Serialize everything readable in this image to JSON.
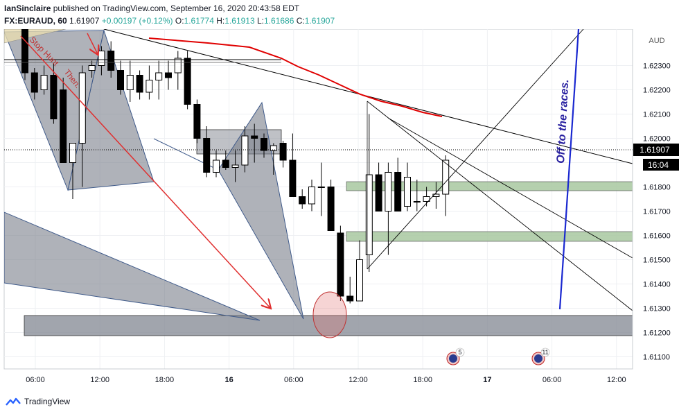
{
  "header": {
    "publisher": "IanSinclaire",
    "published_text": "published on TradingView.com, September 16, 2020 20:43:58 EDT",
    "symbol": "FX:EURAUD, 60",
    "last": "1.61907",
    "change": "+0.00197 (+0.12%)",
    "o_label": "O:",
    "o": "1.61774",
    "h_label": "H:",
    "h": "1.61913",
    "l_label": "L:",
    "l": "1.61686",
    "c_label": "C:",
    "c": "1.61907"
  },
  "footer": {
    "brand": "TradingView"
  },
  "colors": {
    "up_fill": "#ffffff",
    "down_fill": "#000000",
    "candle_border": "#000000",
    "ma": "#e00000",
    "arrow": "#e03030",
    "pattern_fill": "#7a7f8a",
    "zone_green": "#a8c8a0",
    "zone_gray": "#8a8e98",
    "blue_line": "#1a28d0",
    "ellipse": "#d06060",
    "price_tag": "#000000"
  },
  "chart_data": {
    "type": "candlestick",
    "currency": "AUD",
    "ylim": [
      1.6105,
      1.6245
    ],
    "y_ticks": [
      "1.62300",
      "1.62200",
      "1.62100",
      "1.62000",
      "1.61900",
      "1.61800",
      "1.61700",
      "1.61600",
      "1.61500",
      "1.61400",
      "1.61300",
      "1.61200",
      "1.61100"
    ],
    "x_ticks": [
      "06:00",
      "12:00",
      "18:00",
      "16",
      "06:00",
      "12:00",
      "18:00",
      "17",
      "06:00",
      "12:00"
    ],
    "last_price_label": "1.61907",
    "countdown_label": "16:04",
    "candles": [
      [
        1.6245,
        1.625,
        1.6224,
        1.6227
      ],
      [
        1.6227,
        1.6229,
        1.6216,
        1.6219
      ],
      [
        1.622,
        1.623,
        1.6218,
        1.6226
      ],
      [
        1.6226,
        1.6231,
        1.6206,
        1.6208
      ],
      [
        1.622,
        1.6225,
        1.619,
        1.619
      ],
      [
        1.619,
        1.6198,
        1.6175,
        1.6198
      ],
      [
        1.6198,
        1.623,
        1.618,
        1.6227
      ],
      [
        1.6228,
        1.6232,
        1.6225,
        1.623
      ],
      [
        1.623,
        1.6238,
        1.6226,
        1.6236
      ],
      [
        1.6236,
        1.624,
        1.6225,
        1.6228
      ],
      [
        1.6228,
        1.6232,
        1.6218,
        1.622
      ],
      [
        1.622,
        1.6232,
        1.6215,
        1.6226
      ],
      [
        1.6226,
        1.6228,
        1.6216,
        1.6219
      ],
      [
        1.6219,
        1.623,
        1.6216,
        1.6224
      ],
      [
        1.6224,
        1.6232,
        1.6216,
        1.6227
      ],
      [
        1.6227,
        1.6232,
        1.622,
        1.6225
      ],
      [
        1.6227,
        1.6236,
        1.622,
        1.6233
      ],
      [
        1.6233,
        1.6236,
        1.6212,
        1.6214
      ],
      [
        1.6214,
        1.6216,
        1.6198,
        1.62
      ],
      [
        1.62,
        1.6205,
        1.6184,
        1.6186
      ],
      [
        1.6186,
        1.6195,
        1.6184,
        1.6191
      ],
      [
        1.6191,
        1.6195,
        1.6187,
        1.6188
      ],
      [
        1.6188,
        1.6195,
        1.6182,
        1.6189
      ],
      [
        1.6189,
        1.6205,
        1.6186,
        1.6201
      ],
      [
        1.6201,
        1.6206,
        1.619,
        1.62
      ],
      [
        1.62,
        1.6202,
        1.6192,
        1.6195
      ],
      [
        1.6195,
        1.6198,
        1.6185,
        1.6197
      ],
      [
        1.6198,
        1.6199,
        1.6188,
        1.6191
      ],
      [
        1.6191,
        1.6202,
        1.6176,
        1.6176
      ],
      [
        1.6176,
        1.6179,
        1.6171,
        1.6173
      ],
      [
        1.6173,
        1.6183,
        1.617,
        1.618
      ],
      [
        1.618,
        1.619,
        1.6168,
        1.618
      ],
      [
        1.618,
        1.6183,
        1.6162,
        1.6162
      ],
      [
        1.6161,
        1.6164,
        1.6133,
        1.6135
      ],
      [
        1.6135,
        1.6143,
        1.6132,
        1.6133
      ],
      [
        1.6133,
        1.6158,
        1.6133,
        1.615
      ],
      [
        1.6152,
        1.621,
        1.6145,
        1.6185
      ],
      [
        1.6185,
        1.619,
        1.617,
        1.617
      ],
      [
        1.617,
        1.619,
        1.6152,
        1.6186
      ],
      [
        1.6186,
        1.6192,
        1.617,
        1.617
      ],
      [
        1.6172,
        1.619,
        1.617,
        1.6184
      ],
      [
        1.6174,
        1.6183,
        1.617,
        1.6174
      ],
      [
        1.6174,
        1.618,
        1.6172,
        1.6176
      ],
      [
        1.6176,
        1.6182,
        1.6171,
        1.6177
      ],
      [
        1.6177,
        1.6193,
        1.6168,
        1.6191
      ]
    ]
  },
  "annotations": {
    "off_to_races": "Off to the races.",
    "stop_hunt": "Stop Hunt",
    "then": "Then.",
    "event_badge_1": "5",
    "event_badge_2": "11"
  }
}
